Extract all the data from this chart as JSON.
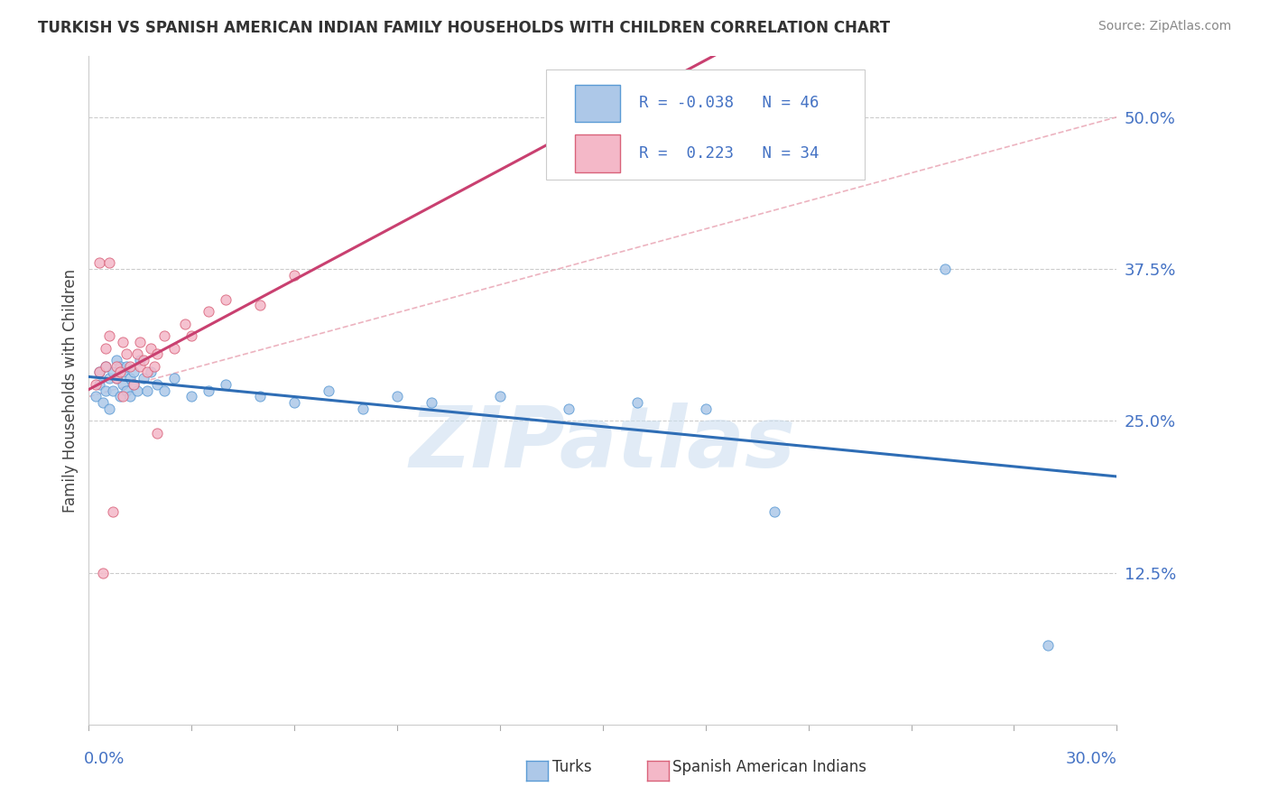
{
  "title": "TURKISH VS SPANISH AMERICAN INDIAN FAMILY HOUSEHOLDS WITH CHILDREN CORRELATION CHART",
  "source": "Source: ZipAtlas.com",
  "ylabel": "Family Households with Children",
  "y_ticks": [
    0.125,
    0.25,
    0.375,
    0.5
  ],
  "y_tick_labels": [
    "12.5%",
    "25.0%",
    "37.5%",
    "50.0%"
  ],
  "x_min": 0.0,
  "x_max": 0.3,
  "y_min": 0.0,
  "y_max": 0.55,
  "turks_R": -0.038,
  "turks_N": 46,
  "spanish_R": 0.223,
  "spanish_N": 34,
  "turks_color": "#adc8e8",
  "turks_edge_color": "#5b9bd5",
  "spanish_color": "#f4b8c8",
  "spanish_edge_color": "#d9627a",
  "turks_line_color": "#2e6db5",
  "spanish_line_color": "#c94070",
  "ref_line_color": "#e8a0b0",
  "watermark_color": "#cddff0",
  "legend_box_color": "#f0f0f0",
  "legend_text_color": "#4472c4",
  "right_tick_color": "#4472c4",
  "bottom_tick_color": "#4472c4",
  "turks_x": [
    0.002,
    0.003,
    0.003,
    0.004,
    0.005,
    0.005,
    0.006,
    0.006,
    0.007,
    0.007,
    0.008,
    0.008,
    0.009,
    0.009,
    0.01,
    0.01,
    0.011,
    0.011,
    0.012,
    0.012,
    0.013,
    0.013,
    0.014,
    0.015,
    0.016,
    0.017,
    0.018,
    0.02,
    0.022,
    0.025,
    0.03,
    0.035,
    0.04,
    0.05,
    0.06,
    0.07,
    0.08,
    0.09,
    0.1,
    0.12,
    0.14,
    0.16,
    0.18,
    0.2,
    0.25,
    0.28
  ],
  "turks_y": [
    0.27,
    0.28,
    0.29,
    0.265,
    0.295,
    0.275,
    0.285,
    0.26,
    0.29,
    0.275,
    0.285,
    0.3,
    0.27,
    0.295,
    0.28,
    0.29,
    0.275,
    0.295,
    0.285,
    0.27,
    0.29,
    0.28,
    0.275,
    0.3,
    0.285,
    0.275,
    0.29,
    0.28,
    0.275,
    0.285,
    0.27,
    0.275,
    0.28,
    0.27,
    0.265,
    0.275,
    0.26,
    0.27,
    0.265,
    0.27,
    0.26,
    0.265,
    0.26,
    0.175,
    0.375,
    0.065
  ],
  "spanish_x": [
    0.002,
    0.003,
    0.004,
    0.005,
    0.005,
    0.006,
    0.007,
    0.008,
    0.008,
    0.009,
    0.01,
    0.01,
    0.011,
    0.012,
    0.013,
    0.014,
    0.015,
    0.015,
    0.016,
    0.017,
    0.018,
    0.019,
    0.02,
    0.022,
    0.025,
    0.028,
    0.03,
    0.035,
    0.04,
    0.05,
    0.06,
    0.003,
    0.006,
    0.02
  ],
  "spanish_y": [
    0.28,
    0.29,
    0.125,
    0.31,
    0.295,
    0.32,
    0.175,
    0.295,
    0.285,
    0.29,
    0.315,
    0.27,
    0.305,
    0.295,
    0.28,
    0.305,
    0.295,
    0.315,
    0.3,
    0.29,
    0.31,
    0.295,
    0.305,
    0.32,
    0.31,
    0.33,
    0.32,
    0.34,
    0.35,
    0.345,
    0.37,
    0.38,
    0.38,
    0.24
  ],
  "ref_line_x": [
    0.0,
    0.3
  ],
  "ref_line_y": [
    0.27,
    0.5
  ]
}
